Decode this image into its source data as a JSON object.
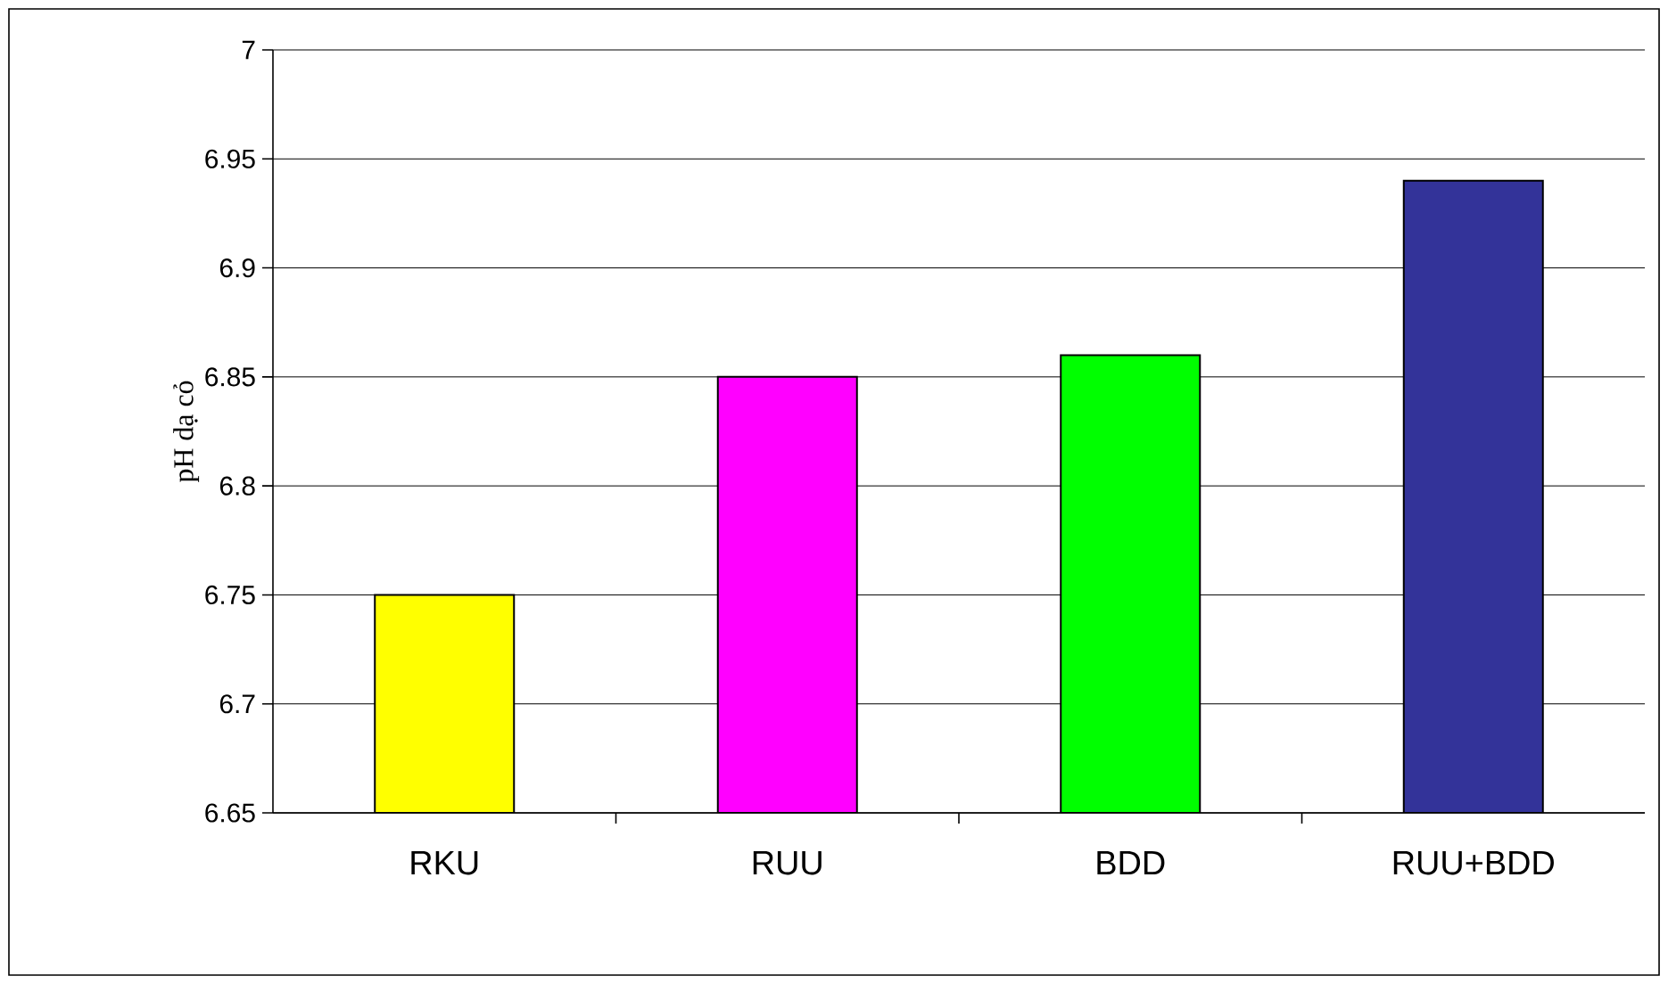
{
  "chart_data": {
    "type": "bar",
    "ylabel": "pH dạ cỏ",
    "categories": [
      "RKU",
      "RUU",
      "BDD",
      "RUU+BDD"
    ],
    "values": [
      6.75,
      6.85,
      6.86,
      6.94
    ],
    "colors": [
      "#ffff00",
      "#ff00ff",
      "#00ff00",
      "#333399"
    ],
    "ylim": [
      6.65,
      7
    ],
    "yticks": [
      6.65,
      6.7,
      6.75,
      6.8,
      6.85,
      6.9,
      6.95,
      7
    ],
    "grid": "y"
  }
}
